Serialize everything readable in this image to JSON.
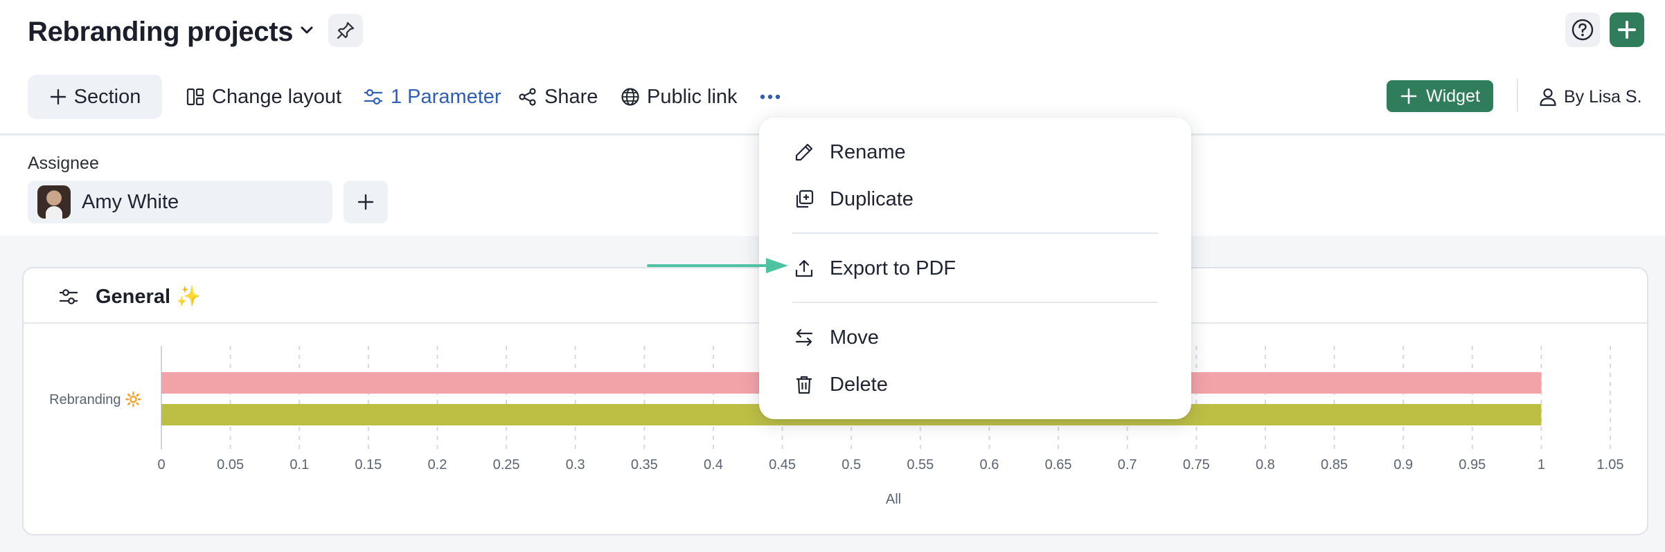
{
  "header": {
    "title": "Rebranding projects",
    "icons": [
      "chevron-down-icon",
      "pin-icon",
      "help-icon",
      "plus-icon"
    ]
  },
  "toolbar": {
    "section_label": "Section",
    "change_layout_label": "Change layout",
    "parameter_label": "1 Parameter",
    "share_label": "Share",
    "public_link_label": "Public link",
    "widget_label": "Widget",
    "by_user_label": "By Lisa S."
  },
  "filters": {
    "assignee_label": "Assignee",
    "assignee_value": "Amy White"
  },
  "card": {
    "title": "General",
    "title_emoji": "✨"
  },
  "menu": {
    "items": [
      {
        "label": "Rename",
        "icon": "pencil-icon"
      },
      {
        "label": "Duplicate",
        "icon": "duplicate-icon"
      },
      {
        "label": "Export to PDF",
        "icon": "export-icon"
      },
      {
        "label": "Move",
        "icon": "move-icon"
      },
      {
        "label": "Delete",
        "icon": "trash-icon"
      }
    ]
  },
  "colors": {
    "accent_green": "#2f7d5b",
    "link_blue": "#2e5fb5",
    "arrow_teal": "#4fc3a1"
  },
  "chart_data": {
    "type": "bar",
    "orientation": "horizontal",
    "categories": [
      "Rebranding 🔆"
    ],
    "series": [
      {
        "values": [
          1
        ],
        "color": "#f2a3a8"
      },
      {
        "values": [
          1
        ],
        "color": "#bdbf45"
      }
    ],
    "xlim": [
      0,
      1.05
    ],
    "x_ticks": [
      "0",
      "0.05",
      "0.1",
      "0.15",
      "0.2",
      "0.25",
      "0.3",
      "0.35",
      "0.4",
      "0.45",
      "0.5",
      "0.55",
      "0.6",
      "0.65",
      "0.7",
      "0.75",
      "0.8",
      "0.85",
      "0.9",
      "0.95",
      "1",
      "1.05"
    ],
    "xlabel": "All",
    "grid": true
  }
}
